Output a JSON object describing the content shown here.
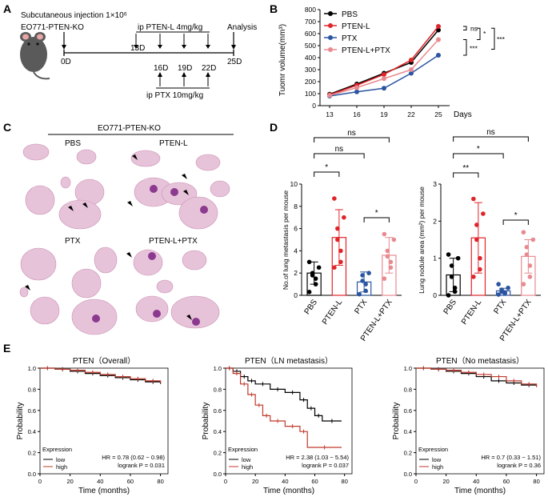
{
  "panels": {
    "a": "A",
    "b": "B",
    "c": "C",
    "d": "D",
    "e": "E"
  },
  "panel_a": {
    "injection": "Subcutaneous injection 1×10⁶",
    "cell_line": "EO771-PTEN-KO",
    "ptenl_dose": "ip PTEN-L 4mg/kg",
    "ptx_dose": "ip PTX 10mg/kg",
    "analysis": "Analysis",
    "days": [
      "0D",
      "13D",
      "16D",
      "19D",
      "22D",
      "25D"
    ]
  },
  "panel_c": {
    "title": "EO771-PTEN-KO",
    "groups": [
      "PBS",
      "PTEN-L",
      "PTX",
      "PTEN-L+PTX"
    ]
  },
  "colors": {
    "PBS": "#000000",
    "PTEN-L": "#e0252a",
    "PTX": "#2b55a0",
    "PTEN-L+PTX": "#e88a90"
  },
  "chart_data": [
    {
      "type": "line",
      "panel": "B",
      "ylabel": "Tuomr volume(mm³)",
      "xlabel": "Days",
      "categories": [
        13,
        16,
        19,
        22,
        25
      ],
      "ylim": [
        0,
        800
      ],
      "yticks": [
        0,
        100,
        200,
        300,
        400,
        500,
        600,
        700,
        800
      ],
      "xticks": [
        "13",
        "16",
        "19",
        "22",
        "25"
      ],
      "series": [
        {
          "name": "PBS",
          "values": [
            95,
            180,
            270,
            360,
            630
          ]
        },
        {
          "name": "PTEN-L",
          "values": [
            90,
            170,
            260,
            380,
            660
          ]
        },
        {
          "name": "PTX",
          "values": [
            80,
            115,
            145,
            270,
            420
          ]
        },
        {
          "name": "PTEN-L+PTX",
          "values": [
            85,
            150,
            225,
            300,
            550
          ]
        }
      ],
      "significance": [
        "ns",
        "*",
        "***",
        "***"
      ]
    },
    {
      "type": "bar",
      "panel": "D-left",
      "ylabel": "No.of lung metastasis per mouse",
      "categories": [
        "PBS",
        "PTEN-L",
        "PTX",
        "PTEN-L+PTX"
      ],
      "values": [
        2.0,
        5.2,
        1.2,
        3.6
      ],
      "errors": [
        1.0,
        2.5,
        0.9,
        1.6
      ],
      "points": [
        [
          0.3,
          1,
          1.5,
          1.8,
          2,
          2.5,
          3
        ],
        [
          2.5,
          3,
          4,
          5,
          6,
          7,
          8.7
        ],
        [
          0.1,
          0.4,
          1,
          1.3,
          1.8,
          2
        ],
        [
          1.5,
          2.5,
          3,
          3.5,
          4,
          5,
          5.5
        ]
      ],
      "ylim": [
        0,
        10
      ],
      "yticks": [
        "0",
        "2",
        "4",
        "6",
        "8",
        "10"
      ],
      "significance": [
        "*",
        "*",
        "ns",
        "ns"
      ]
    },
    {
      "type": "bar",
      "panel": "D-right",
      "ylabel": "Lung nodule area (mm²) per mouse",
      "categories": [
        "PBS",
        "PTEN-L",
        "PTX",
        "PTEN-L+PTX"
      ],
      "values": [
        0.55,
        1.55,
        0.12,
        1.05
      ],
      "errors": [
        0.45,
        0.95,
        0.07,
        0.45
      ],
      "points": [
        [
          0,
          0.1,
          0.2,
          0.5,
          0.8,
          1.0,
          1.1
        ],
        [
          0.5,
          0.7,
          1.0,
          1.5,
          1.9,
          2.2,
          2.6
        ],
        [
          0.02,
          0.05,
          0.08,
          0.1,
          0.15,
          0.2,
          0.3
        ],
        [
          0.3,
          0.5,
          0.8,
          1.1,
          1.3,
          1.5,
          1.7
        ]
      ],
      "ylim": [
        0,
        3
      ],
      "yticks": [
        "0",
        "1",
        "2",
        "3"
      ],
      "significance": [
        "**",
        "*",
        "*",
        "ns"
      ]
    },
    {
      "type": "line",
      "panel": "E1",
      "title": "PTEN（Overall）",
      "ylabel": "Probability",
      "xlabel": "Time (months)",
      "xticks": [
        "0",
        "20",
        "40",
        "60",
        "80"
      ],
      "yticks": [
        "0.0",
        "0.2",
        "0.4",
        "0.6",
        "0.8",
        "1.0"
      ],
      "xlim": [
        0,
        85
      ],
      "ylim": [
        0,
        1
      ],
      "series": [
        {
          "name": "low",
          "x": [
            0,
            10,
            20,
            30,
            40,
            50,
            60,
            70,
            80
          ],
          "y": [
            1,
            0.99,
            0.97,
            0.95,
            0.93,
            0.91,
            0.89,
            0.87,
            0.85
          ]
        },
        {
          "name": "high",
          "x": [
            0,
            10,
            20,
            30,
            40,
            50,
            60,
            70,
            80
          ],
          "y": [
            1,
            0.99,
            0.98,
            0.96,
            0.94,
            0.92,
            0.9,
            0.88,
            0.86
          ]
        }
      ],
      "legend_title": "Expression",
      "hr": "HR = 0.78 (0.62 − 0.98)",
      "logrank": "logrank P = 0.031"
    },
    {
      "type": "line",
      "panel": "E2",
      "title": "PTEN（LN metastasis）",
      "ylabel": "Probability",
      "xlabel": "Time (months)",
      "xticks": [
        "0",
        "20",
        "40",
        "60",
        "80"
      ],
      "yticks": [
        "0.0",
        "0.2",
        "0.4",
        "0.6",
        "0.8",
        "1.0"
      ],
      "xlim": [
        0,
        85
      ],
      "ylim": [
        0,
        1
      ],
      "series": [
        {
          "name": "low",
          "x": [
            0,
            5,
            10,
            15,
            20,
            30,
            40,
            50,
            55,
            60,
            65,
            78
          ],
          "y": [
            1,
            0.97,
            0.92,
            0.88,
            0.85,
            0.8,
            0.77,
            0.7,
            0.62,
            0.55,
            0.5,
            0.5
          ]
        },
        {
          "name": "high",
          "x": [
            0,
            5,
            10,
            15,
            20,
            25,
            30,
            40,
            50,
            55,
            78
          ],
          "y": [
            1,
            0.95,
            0.85,
            0.75,
            0.65,
            0.55,
            0.5,
            0.45,
            0.4,
            0.25,
            0.25
          ]
        }
      ],
      "legend_title": "Expression",
      "hr": "HR = 2.38 (1.03 − 5.54)",
      "logrank": "logrank P = 0.037"
    },
    {
      "type": "line",
      "panel": "E3",
      "title": "PTEN（No metastasis）",
      "ylabel": "Probability",
      "xlabel": "Time (months)",
      "xticks": [
        "0",
        "20",
        "40",
        "60",
        "80"
      ],
      "yticks": [
        "0.0",
        "0.2",
        "0.4",
        "0.6",
        "0.8",
        "1.0"
      ],
      "xlim": [
        0,
        85
      ],
      "ylim": [
        0,
        1
      ],
      "series": [
        {
          "name": "low",
          "x": [
            0,
            10,
            20,
            30,
            40,
            50,
            60,
            70,
            80
          ],
          "y": [
            1,
            0.99,
            0.97,
            0.95,
            0.92,
            0.88,
            0.86,
            0.84,
            0.83
          ]
        },
        {
          "name": "high",
          "x": [
            0,
            10,
            20,
            30,
            40,
            50,
            60,
            70,
            80
          ],
          "y": [
            1,
            0.99,
            0.98,
            0.96,
            0.94,
            0.92,
            0.88,
            0.85,
            0.82
          ]
        }
      ],
      "legend_title": "Expression",
      "hr": "HR = 0.7 (0.33 − 1.51)",
      "logrank": "logrank P = 0.36"
    }
  ]
}
